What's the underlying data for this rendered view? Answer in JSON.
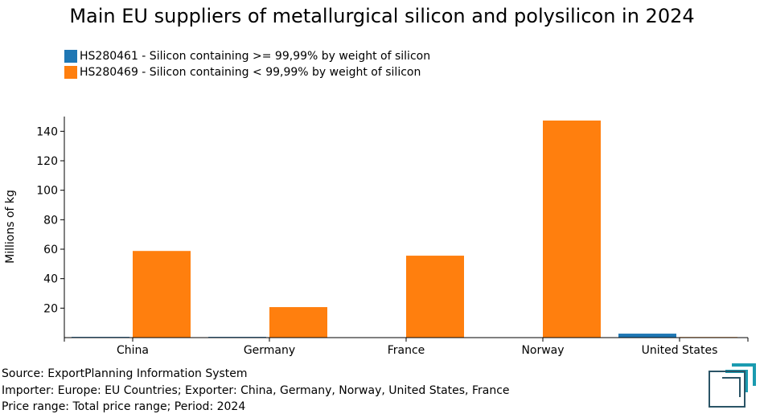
{
  "title": "Main EU suppliers of metallurgical silicon and polysilicon in 2024",
  "chart_data": {
    "type": "bar",
    "title": "Main EU suppliers of metallurgical silicon and polysilicon in 2024",
    "xlabel": "",
    "ylabel": "Millions of kg",
    "ylim": [
      0,
      150
    ],
    "yticks": [
      20,
      40,
      60,
      80,
      100,
      120,
      140
    ],
    "categories": [
      "China",
      "Germany",
      "France",
      "Norway",
      "United States"
    ],
    "series": [
      {
        "name": "HS280461 - Silicon containing >= 99,99% by weight of silicon",
        "color": "#1f77b4",
        "values": [
          0.5,
          0.5,
          0,
          0,
          2.7
        ]
      },
      {
        "name": "HS280469 - Silicon containing < 99,99% by weight of silicon",
        "color": "#ff7f0e",
        "values": [
          58.8,
          20.7,
          55.6,
          147.3,
          0.4
        ]
      }
    ],
    "legend_position": "top-left"
  },
  "footer": {
    "source": "Source: ExportPlanning Information System",
    "filters": "Importer: Europe: EU Countries; Exporter: China, Germany, Norway, United States, France",
    "price": "Price range: Total price range; Period: 2024"
  }
}
